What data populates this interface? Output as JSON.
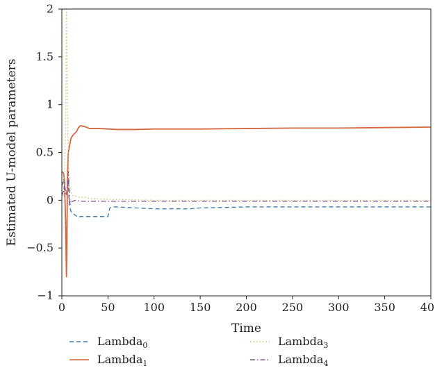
{
  "chart_data": {
    "type": "line",
    "title": "",
    "xlabel": "Time",
    "ylabel": "Estimated U-model parameters",
    "xlim": [
      0,
      400
    ],
    "ylim": [
      -1,
      2
    ],
    "xticks": [
      0,
      50,
      100,
      150,
      200,
      250,
      300,
      350,
      400
    ],
    "yticks": [
      -1,
      -0.5,
      0,
      0.5,
      1,
      1.5,
      2
    ],
    "xtick_labels": [
      "0",
      "50",
      "100",
      "150",
      "200",
      "250",
      "300",
      "350",
      "400"
    ],
    "ytick_labels": [
      "−1",
      "−0.5",
      "0",
      "0.5",
      "1",
      "1.5",
      "2"
    ],
    "grid": false,
    "legend_position": "bottom",
    "series": [
      {
        "name": "Lambda",
        "subscript": "0",
        "color": "#3f7fb4",
        "dash": "dashed",
        "x": [
          0,
          2,
          3,
          4,
          5,
          6,
          7,
          8,
          10,
          12,
          15,
          18,
          20,
          30,
          50,
          52,
          55,
          60,
          80,
          100,
          120,
          140,
          150,
          200,
          250,
          300,
          350,
          400
        ],
        "y": [
          0.15,
          0.22,
          0.05,
          -0.2,
          -0.7,
          0.1,
          0.2,
          -0.05,
          -0.12,
          -0.14,
          -0.16,
          -0.18,
          -0.17,
          -0.17,
          -0.17,
          -0.08,
          -0.07,
          -0.07,
          -0.08,
          -0.09,
          -0.09,
          -0.09,
          -0.08,
          -0.07,
          -0.07,
          -0.07,
          -0.07,
          -0.07
        ]
      },
      {
        "name": "Lambda",
        "subscript": "1",
        "color": "#d4683d",
        "dash": "solid",
        "x": [
          0,
          2,
          3,
          4,
          5,
          5.5,
          6,
          7,
          8,
          9,
          10,
          12,
          14,
          16,
          18,
          20,
          25,
          30,
          40,
          60,
          80,
          100,
          150,
          200,
          250,
          300,
          350,
          400
        ],
        "y": [
          0.3,
          0.28,
          0.2,
          -0.2,
          -0.8,
          -0.5,
          0.2,
          0.5,
          0.55,
          0.6,
          0.65,
          0.68,
          0.7,
          0.72,
          0.76,
          0.78,
          0.77,
          0.75,
          0.75,
          0.74,
          0.74,
          0.745,
          0.745,
          0.75,
          0.755,
          0.755,
          0.76,
          0.765
        ]
      },
      {
        "name": "Lambda",
        "subscript": "3",
        "color": "#d8c070",
        "dash": "dotted",
        "x": [
          0,
          2,
          3,
          4,
          5,
          6,
          7,
          8,
          9,
          10,
          12,
          15,
          20,
          25,
          30,
          50,
          100,
          200,
          300,
          400
        ],
        "y": [
          0.1,
          0.2,
          0.3,
          0.8,
          2.0,
          1.0,
          0.5,
          0.2,
          0.1,
          0.08,
          0.05,
          0.04,
          0.03,
          0.03,
          0.02,
          0.01,
          0.0,
          0.0,
          0.0,
          0.0
        ]
      },
      {
        "name": "Lambda",
        "subscript": "4",
        "color": "#8a5a90",
        "dash": "dashdot",
        "x": [
          0,
          2,
          3,
          4,
          5,
          6,
          7,
          8,
          9,
          10,
          12,
          15,
          20,
          30,
          50,
          100,
          200,
          300,
          400
        ],
        "y": [
          0.05,
          0.1,
          0.15,
          0.1,
          0.05,
          0.2,
          0.3,
          0.1,
          -0.05,
          -0.02,
          -0.01,
          0.0,
          -0.01,
          -0.01,
          -0.01,
          -0.01,
          -0.01,
          -0.01,
          -0.01
        ]
      }
    ]
  }
}
